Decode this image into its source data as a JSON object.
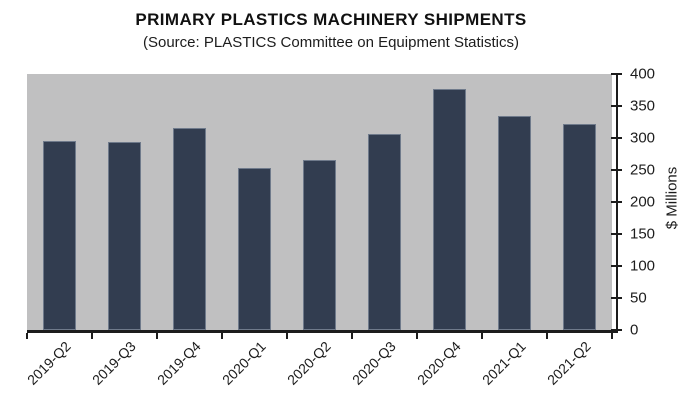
{
  "chart_data": {
    "type": "bar",
    "title": "PRIMARY PLASTICS MACHINERY SHIPMENTS",
    "subtitle": "(Source: PLASTICS Committee on Equipment Statistics)",
    "categories": [
      "2019-Q2",
      "2019-Q3",
      "2019-Q4",
      "2020-Q1",
      "2020-Q2",
      "2020-Q3",
      "2020-Q4",
      "2021-Q1",
      "2021-Q2"
    ],
    "values": [
      295,
      293,
      316,
      253,
      265,
      306,
      376,
      334,
      322
    ],
    "xlabel": "",
    "ylabel": "$ Millions",
    "ylim": [
      0,
      400
    ],
    "yticks": [
      0,
      50,
      100,
      150,
      200,
      250,
      300,
      350,
      400
    ],
    "grid": false,
    "legend": "none",
    "y_axis_side": "right",
    "x_label_rotation_deg": 45
  },
  "colors": {
    "bar_fill": "#323d50",
    "bar_edge": "#6f7a8b",
    "plot_background": "#c0c0c1",
    "axis": "#1c1c1c",
    "page_background": "#ffffff",
    "text": "#111111"
  }
}
